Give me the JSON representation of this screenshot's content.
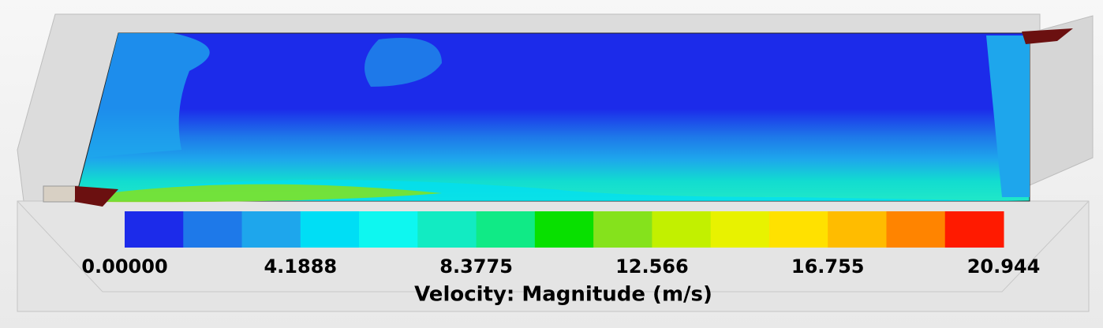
{
  "legend": {
    "title": "Velocity: Magnitude (m/s)",
    "ticks": [
      "0.00000",
      "4.1888",
      "8.3775",
      "12.566",
      "16.755",
      "20.944"
    ],
    "colors": [
      "#1c2bea",
      "#1e79e9",
      "#1ea6ec",
      "#00def5",
      "#0ef7f0",
      "#12ebc2",
      "#10ea86",
      "#08e000",
      "#85e21c",
      "#c2f000",
      "#e8f200",
      "#ffe100",
      "#ffbc00",
      "#ff8400",
      "#ff1a00"
    ]
  }
}
